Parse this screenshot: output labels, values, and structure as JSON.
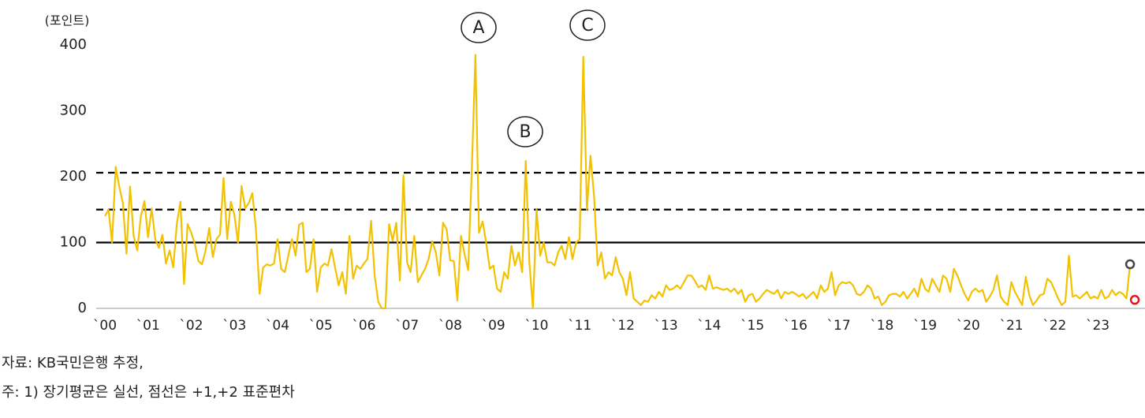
{
  "chart_data": {
    "type": "line",
    "y_axis_label": "(포인트)",
    "categories": [
      "`00",
      null,
      null,
      null,
      null,
      null,
      null,
      null,
      null,
      null,
      null,
      null,
      "`01",
      null,
      null,
      null,
      null,
      null,
      null,
      null,
      null,
      null,
      null,
      null,
      "`02",
      null,
      null,
      null,
      null,
      null,
      null,
      null,
      null,
      null,
      null,
      null,
      "`03",
      null,
      null,
      null,
      null,
      null,
      null,
      null,
      null,
      null,
      null,
      null,
      "`04",
      null,
      null,
      null,
      null,
      null,
      null,
      null,
      null,
      null,
      null,
      null,
      "`05",
      null,
      null,
      null,
      null,
      null,
      null,
      null,
      null,
      null,
      null,
      null,
      "`06",
      null,
      null,
      null,
      null,
      null,
      null,
      null,
      null,
      null,
      null,
      null,
      "`07",
      null,
      null,
      null,
      null,
      null,
      null,
      null,
      null,
      null,
      null,
      null,
      "`08",
      null,
      null,
      null,
      null,
      null,
      null,
      null,
      null,
      null,
      null,
      null,
      "`09",
      null,
      null,
      null,
      null,
      null,
      null,
      null,
      null,
      null,
      null,
      null,
      "`10",
      null,
      null,
      null,
      null,
      null,
      null,
      null,
      null,
      null,
      null,
      null,
      "`11",
      null,
      null,
      null,
      null,
      null,
      null,
      null,
      null,
      null,
      null,
      null,
      "`12",
      null,
      null,
      null,
      null,
      null,
      null,
      null,
      null,
      null,
      null,
      null,
      "`13",
      null,
      null,
      null,
      null,
      null,
      null,
      null,
      null,
      null,
      null,
      null,
      "`14",
      null,
      null,
      null,
      null,
      null,
      null,
      null,
      null,
      null,
      null,
      null,
      "`15",
      null,
      null,
      null,
      null,
      null,
      null,
      null,
      null,
      null,
      null,
      null,
      "`16",
      null,
      null,
      null,
      null,
      null,
      null,
      null,
      null,
      null,
      null,
      null,
      "`17",
      null,
      null,
      null,
      null,
      null,
      null,
      null,
      null,
      null,
      null,
      null,
      "`18",
      null,
      null,
      null,
      null,
      null,
      null,
      null,
      null,
      null,
      null,
      null,
      "`19",
      null,
      null,
      null,
      null,
      null,
      null,
      null,
      null,
      null,
      null,
      null,
      "`20",
      null,
      null,
      null,
      null,
      null,
      null,
      null,
      null,
      null,
      null,
      null,
      "`21",
      null,
      null,
      null,
      null,
      null,
      null,
      null,
      null,
      null,
      null,
      null,
      "`22",
      null,
      null,
      null,
      null,
      null,
      null,
      null,
      null,
      null,
      null,
      null,
      "`23",
      null,
      null,
      null,
      null,
      null,
      null,
      null,
      null,
      null
    ],
    "series": [
      {
        "color": "#f2c200",
        "values": [
          140,
          150,
          100,
          215,
          185,
          160,
          83,
          185,
          110,
          88,
          140,
          163,
          108,
          152,
          105,
          92,
          112,
          68,
          88,
          62,
          128,
          162,
          37,
          128,
          115,
          98,
          72,
          67,
          88,
          122,
          78,
          105,
          112,
          198,
          105,
          162,
          142,
          100,
          186,
          152,
          160,
          175,
          120,
          22,
          62,
          67,
          65,
          68,
          105,
          60,
          55,
          80,
          105,
          80,
          127,
          130,
          55,
          60,
          105,
          25,
          62,
          68,
          65,
          90,
          62,
          35,
          55,
          22,
          110,
          45,
          65,
          60,
          68,
          75,
          133,
          50,
          10,
          0,
          0,
          128,
          103,
          130,
          42,
          202,
          70,
          55,
          110,
          40,
          50,
          60,
          75,
          102,
          85,
          50,
          130,
          120,
          73,
          72,
          12,
          110,
          82,
          58,
          210,
          385,
          115,
          132,
          100,
          60,
          65,
          30,
          25,
          55,
          45,
          95,
          65,
          85,
          55,
          224,
          70,
          0,
          150,
          80,
          100,
          70,
          70,
          65,
          85,
          95,
          75,
          108,
          75,
          100,
          105,
          382,
          150,
          232,
          170,
          65,
          85,
          45,
          55,
          50,
          78,
          55,
          45,
          20,
          55,
          15,
          10,
          5,
          12,
          10,
          20,
          15,
          25,
          18,
          35,
          28,
          30,
          35,
          30,
          40,
          50,
          50,
          42,
          32,
          35,
          28,
          50,
          30,
          32,
          30,
          28,
          30,
          25,
          30,
          22,
          28,
          10,
          20,
          22,
          10,
          15,
          22,
          28,
          25,
          22,
          28,
          15,
          25,
          22,
          25,
          22,
          18,
          22,
          15,
          20,
          25,
          15,
          35,
          25,
          30,
          55,
          20,
          35,
          40,
          38,
          40,
          35,
          22,
          20,
          25,
          35,
          30,
          15,
          18,
          5,
          10,
          20,
          22,
          22,
          18,
          25,
          15,
          22,
          30,
          18,
          45,
          30,
          25,
          45,
          35,
          25,
          50,
          45,
          25,
          60,
          50,
          35,
          22,
          12,
          25,
          30,
          25,
          28,
          10,
          18,
          28,
          50,
          18,
          10,
          5,
          40,
          25,
          15,
          5,
          48,
          20,
          5,
          12,
          20,
          22,
          45,
          40,
          28,
          15,
          5,
          10,
          80,
          18,
          20,
          15,
          20,
          25,
          15,
          18,
          15,
          28,
          15,
          18,
          28,
          20,
          25,
          22,
          15,
          67
        ]
      }
    ],
    "end_markers": [
      {
        "value": 67,
        "color": "#444444"
      },
      {
        "value": 13,
        "color": "#e8141c"
      }
    ],
    "reference_lines": [
      {
        "value": 100,
        "style": "solid"
      },
      {
        "value": 150,
        "style": "dashed"
      },
      {
        "value": 206,
        "style": "dashed"
      }
    ],
    "annotations": [
      "A",
      "B",
      "C"
    ],
    "ylim": [
      0,
      400
    ],
    "yticks": [
      0,
      100,
      200,
      300,
      400
    ]
  },
  "notes": [
    "자료: KB국민은행 추정,",
    "주: 1) 장기평균은 실선, 점선은 +1,+2 표준편차"
  ]
}
